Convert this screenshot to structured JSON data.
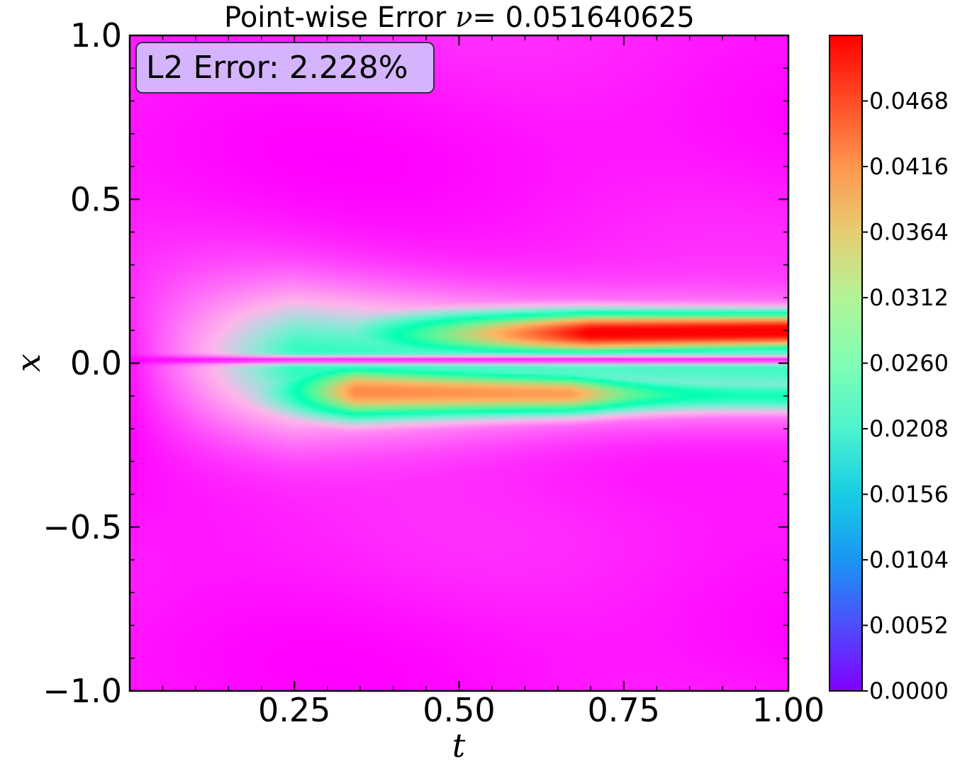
{
  "chart_data": {
    "type": "heatmap",
    "title": "Point-wise Error",
    "title_variable": "ν",
    "title_value": "= 0.051640625",
    "annotation": "L2 Error: 2.228%",
    "xlabel": "t",
    "ylabel": "x",
    "xlim": [
      0.0,
      1.0
    ],
    "ylim": [
      -1.0,
      1.0
    ],
    "x_ticks": [
      0.25,
      0.5,
      0.75,
      1.0
    ],
    "x_tick_labels": [
      "0.25",
      "0.50",
      "0.75",
      "1.00"
    ],
    "y_ticks": [
      -1.0,
      -0.5,
      0.0,
      0.5,
      1.0
    ],
    "y_tick_labels": [
      "−1.0",
      "−0.5",
      "0.0",
      "0.5",
      "1.0"
    ],
    "colormap": "rainbow",
    "colorbar_range": [
      0.0,
      0.052
    ],
    "colorbar_ticks": [
      0.0,
      0.0052,
      0.0104,
      0.0156,
      0.0208,
      0.026,
      0.0312,
      0.0364,
      0.0416,
      0.0468
    ],
    "colorbar_tick_labels": [
      "0.0000",
      "0.0052",
      "0.0104",
      "0.0156",
      "0.0208",
      "0.0260",
      "0.0312",
      "0.0364",
      "0.0416",
      "0.0468"
    ],
    "error_features": [
      {
        "region": "upper band",
        "t_range": [
          0.45,
          1.0
        ],
        "x_center": 0.09,
        "peak_error": 0.052
      },
      {
        "region": "lower band",
        "t_range": [
          0.35,
          0.6
        ],
        "x_center": -0.09,
        "peak_error": 0.041
      },
      {
        "region": "background",
        "peak_error": 0.003
      }
    ]
  },
  "colors": {
    "badge_fill": "#d4b4fc",
    "badge_stroke": "#3a2a4a",
    "frame": "#000000"
  }
}
